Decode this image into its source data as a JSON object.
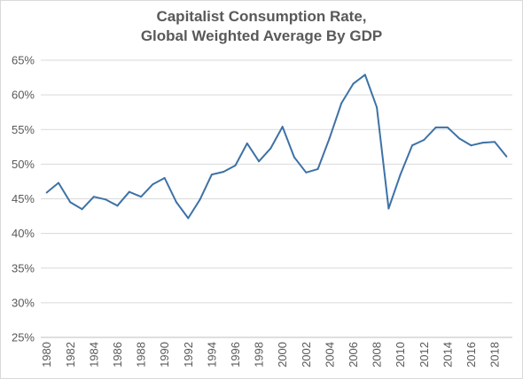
{
  "chart_data": {
    "type": "line",
    "title_lines": [
      "Capitalist Consumption Rate,",
      "Global Weighted Average By GDP"
    ],
    "xlabel": "",
    "ylabel": "",
    "ylim": [
      25,
      65
    ],
    "y_ticks": [
      25,
      30,
      35,
      40,
      45,
      50,
      55,
      60,
      65
    ],
    "y_tick_labels": [
      "25%",
      "30%",
      "35%",
      "40%",
      "45%",
      "50%",
      "55%",
      "60%",
      "65%"
    ],
    "x_tick_labels": [
      "1980",
      "1982",
      "1984",
      "1986",
      "1988",
      "1990",
      "1992",
      "1994",
      "1996",
      "1998",
      "2000",
      "2002",
      "2004",
      "2006",
      "2008",
      "2010",
      "2012",
      "2014",
      "2016",
      "2018"
    ],
    "grid": "horizontal",
    "line_color": "#3d72a6",
    "series": [
      {
        "x": [
          1980,
          1981,
          1982,
          1983,
          1984,
          1985,
          1986,
          1987,
          1988,
          1989,
          1990,
          1991,
          1992,
          1993,
          1994,
          1995,
          1996,
          1997,
          1998,
          1999,
          2000,
          2001,
          2002,
          2003,
          2004,
          2005,
          2006,
          2007,
          2008,
          2009,
          2010,
          2011,
          2012,
          2013,
          2014,
          2015,
          2016,
          2017,
          2018,
          2019
        ],
        "values": [
          45.9,
          47.3,
          44.5,
          43.5,
          45.3,
          44.9,
          44.0,
          46.0,
          45.3,
          47.1,
          48.0,
          44.5,
          42.2,
          44.9,
          48.5,
          48.9,
          49.8,
          53.0,
          50.4,
          52.3,
          55.4,
          51.0,
          48.8,
          49.3,
          53.8,
          58.8,
          61.6,
          62.9,
          58.2,
          43.6,
          48.5,
          52.7,
          53.5,
          55.3,
          55.3,
          53.7,
          52.7,
          53.1,
          53.2,
          51.1
        ]
      }
    ]
  }
}
